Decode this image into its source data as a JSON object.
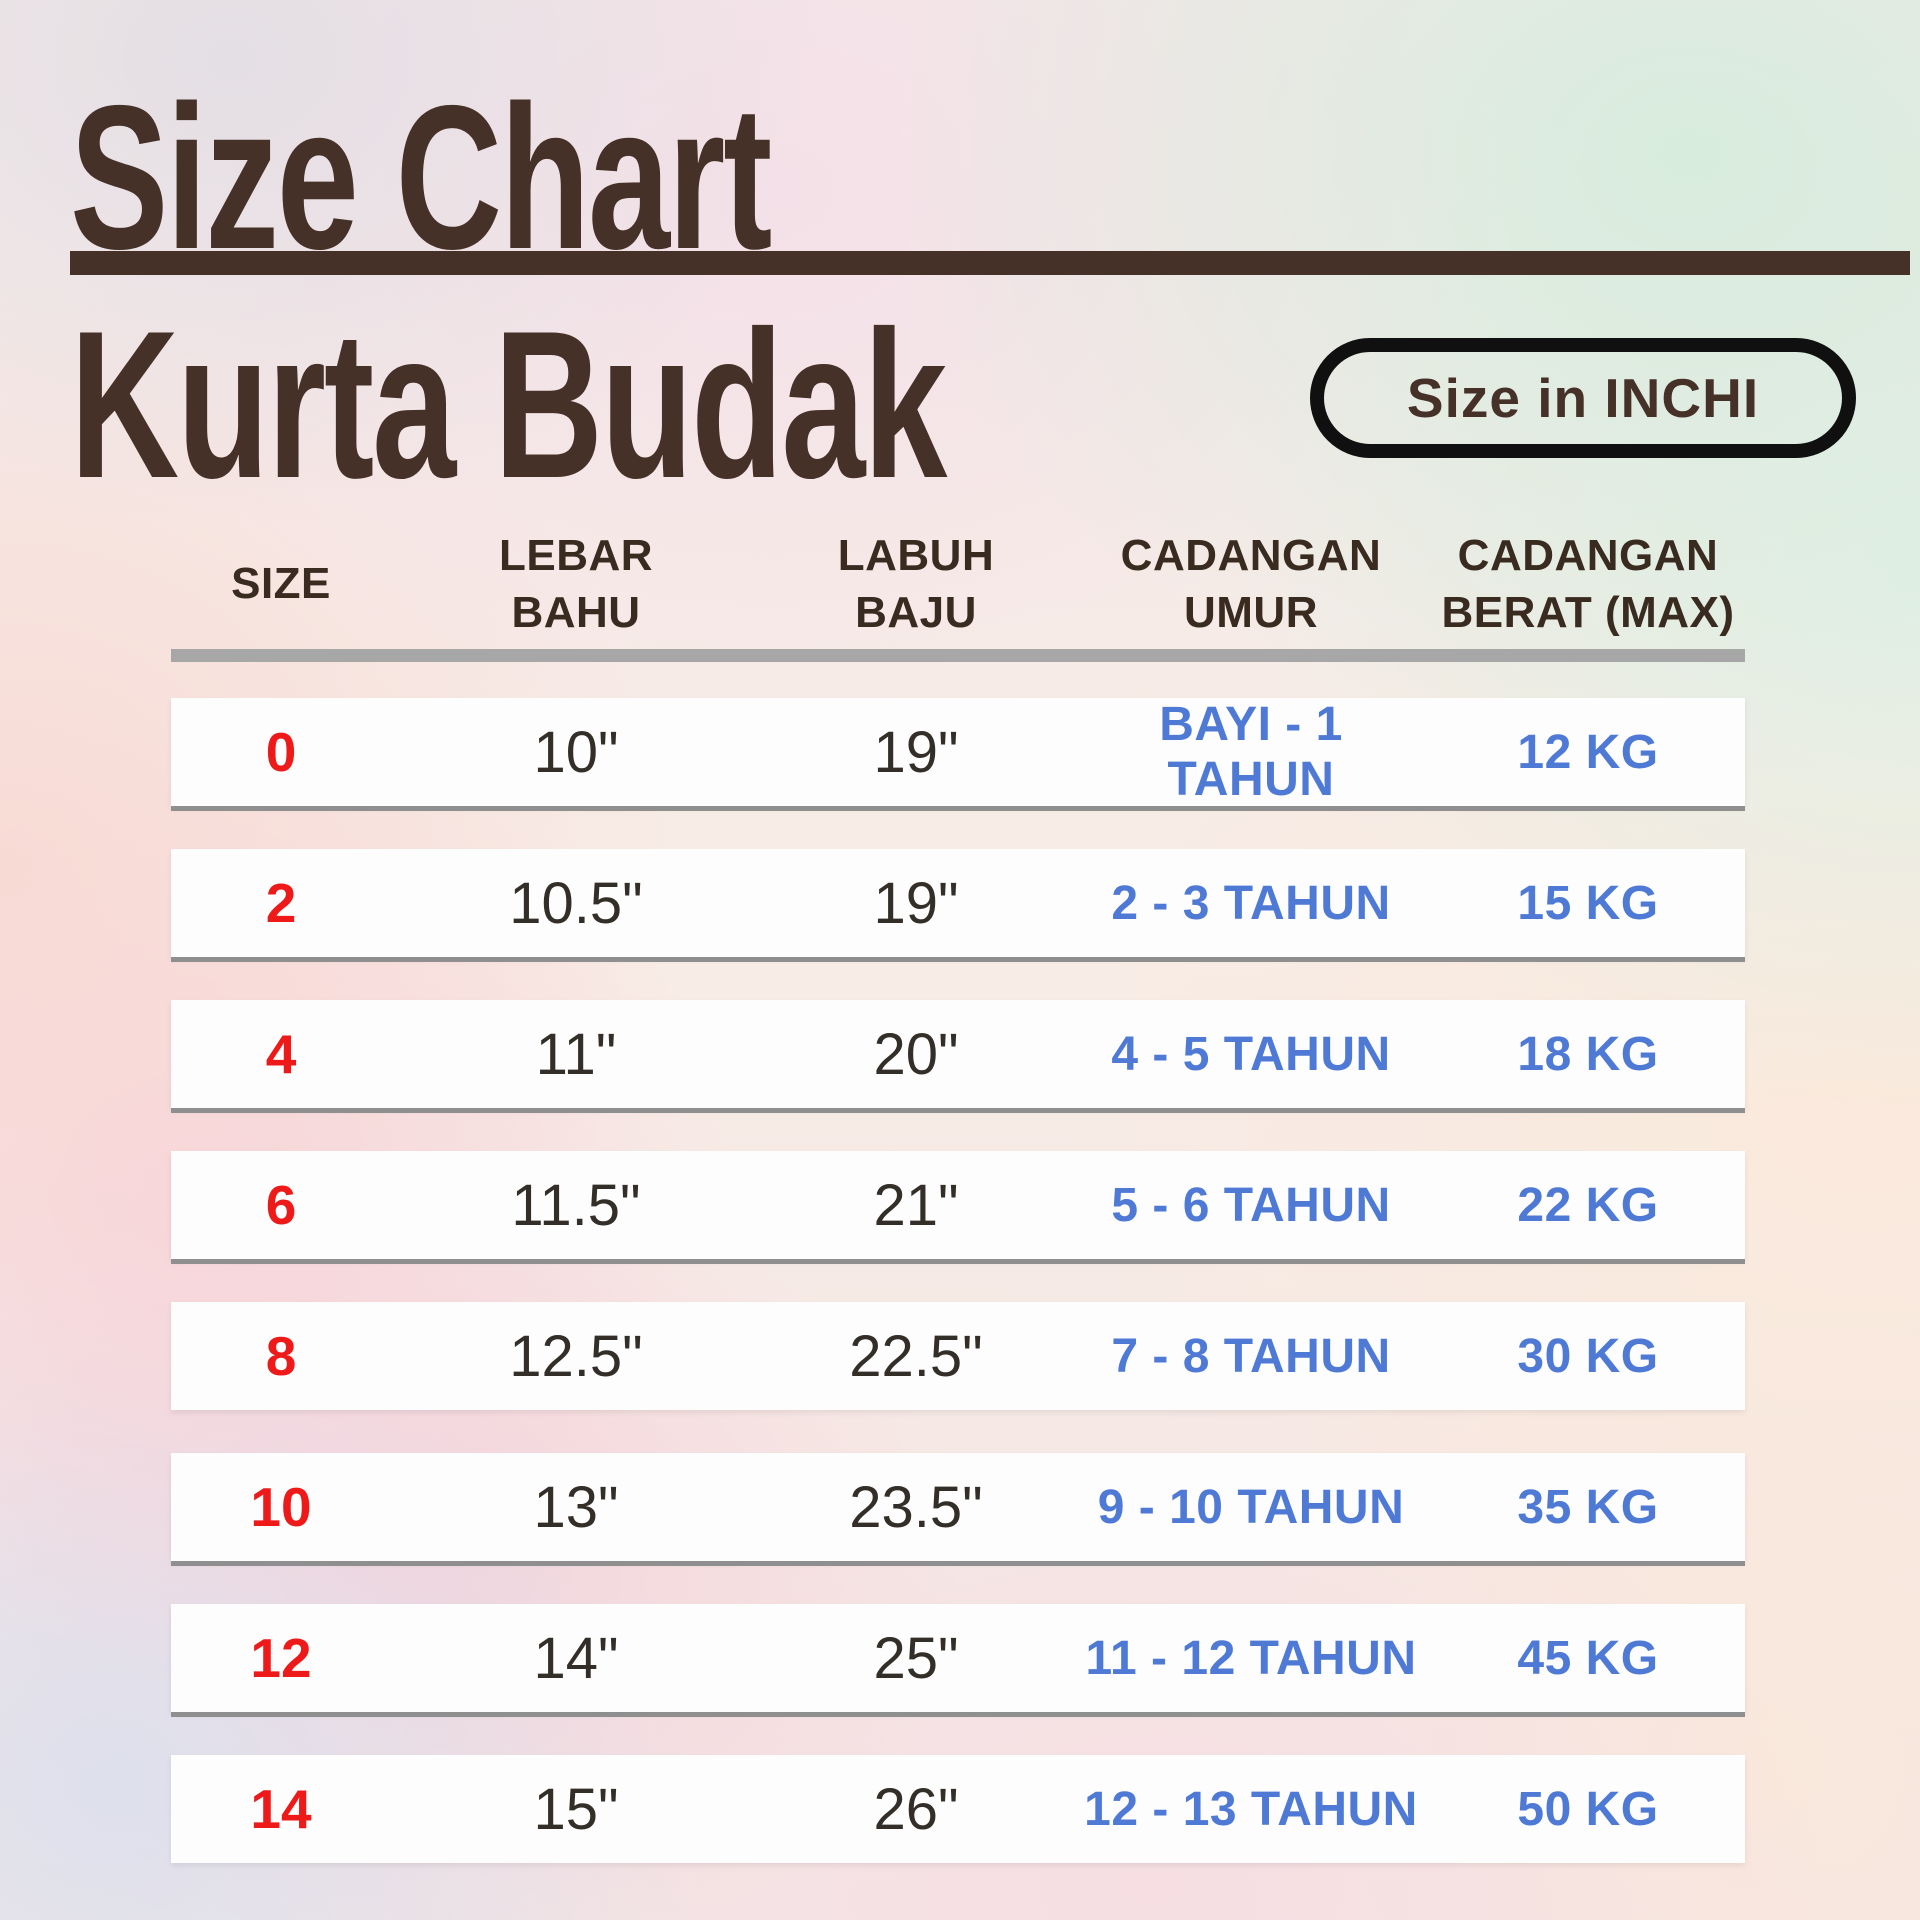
{
  "header": {
    "title": "Size Chart",
    "subtitle": "Kurta Budak",
    "unit_badge": "Size in INCHI"
  },
  "table": {
    "columns": [
      {
        "id": "size",
        "label": "SIZE"
      },
      {
        "id": "lebar",
        "label": "LEBAR\nBAHU"
      },
      {
        "id": "labuh",
        "label": "LABUH\nBAJU"
      },
      {
        "id": "umur",
        "label": "CADANGAN\nUMUR"
      },
      {
        "id": "berat",
        "label": "CADANGAN\nBERAT (MAX)"
      }
    ],
    "rows": [
      {
        "size": "0",
        "lebar": "10\"",
        "labuh": "19\"",
        "umur": "BAYI - 1 TAHUN",
        "berat": "12 KG",
        "divider": true
      },
      {
        "size": "2",
        "lebar": "10.5\"",
        "labuh": "19\"",
        "umur": "2 - 3 TAHUN",
        "berat": "15 KG",
        "divider": true
      },
      {
        "size": "4",
        "lebar": "11\"",
        "labuh": "20\"",
        "umur": "4 - 5 TAHUN",
        "berat": "18 KG",
        "divider": true
      },
      {
        "size": "6",
        "lebar": "11.5\"",
        "labuh": "21\"",
        "umur": "5 - 6 TAHUN",
        "berat": "22 KG",
        "divider": true
      },
      {
        "size": "8",
        "lebar": "12.5\"",
        "labuh": "22.5\"",
        "umur": "7 - 8 TAHUN",
        "berat": "30 KG",
        "divider": false
      },
      {
        "size": "10",
        "lebar": "13\"",
        "labuh": "23.5\"",
        "umur": "9 - 10 TAHUN",
        "berat": "35 KG",
        "divider": true
      },
      {
        "size": "12",
        "lebar": "14\"",
        "labuh": "25\"",
        "umur": "11 - 12 TAHUN",
        "berat": "45 KG",
        "divider": true
      },
      {
        "size": "14",
        "lebar": "15\"",
        "labuh": "26\"",
        "umur": "12 - 13 TAHUN",
        "berat": "50 KG",
        "divider": false
      }
    ]
  },
  "colors": {
    "brown": "#453127",
    "red": "#ee1a1a",
    "blue": "#4e79d5",
    "header-text": "#392b20",
    "measure-text": "#332e28",
    "line-gray": "#a7a7a7",
    "divider-gray": "#8f8f8f",
    "badge-border": "#101010",
    "strip-white": "#fdfdfd"
  },
  "chart_data": {
    "type": "table",
    "title": "Size Chart",
    "subtitle": "Kurta Budak",
    "unit_note": "Size in INCHI",
    "columns": [
      "SIZE",
      "LEBAR BAHU",
      "LABUH BAJU",
      "CADANGAN UMUR",
      "CADANGAN BERAT (MAX)"
    ],
    "rows": [
      [
        "0",
        "10\"",
        "19\"",
        "BAYI - 1 TAHUN",
        "12 KG"
      ],
      [
        "2",
        "10.5\"",
        "19\"",
        "2 - 3 TAHUN",
        "15 KG"
      ],
      [
        "4",
        "11\"",
        "20\"",
        "4 - 5 TAHUN",
        "18 KG"
      ],
      [
        "6",
        "11.5\"",
        "21\"",
        "5 - 6 TAHUN",
        "22 KG"
      ],
      [
        "8",
        "12.5\"",
        "22.5\"",
        "7 - 8 TAHUN",
        "30 KG"
      ],
      [
        "10",
        "13\"",
        "23.5\"",
        "9 - 10 TAHUN",
        "35 KG"
      ],
      [
        "12",
        "14\"",
        "25\"",
        "11 - 12 TAHUN",
        "45 KG"
      ],
      [
        "14",
        "15\"",
        "26\"",
        "12 - 13 TAHUN",
        "50 KG"
      ]
    ]
  }
}
